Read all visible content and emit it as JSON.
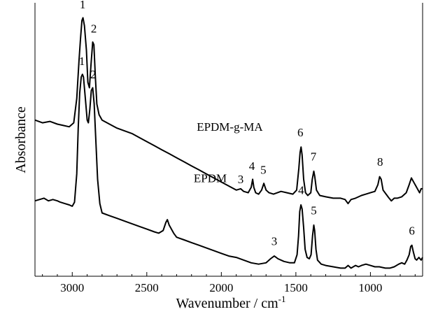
{
  "chart_data": {
    "type": "line",
    "title": "",
    "xlabel": "Wavenumber / cm",
    "xlabel_superscript": "-1",
    "ylabel": "Absorbance",
    "xlim": [
      3250,
      650
    ],
    "x_reversed": true,
    "ylim": [
      0,
      1
    ],
    "y_ticks_labeled": false,
    "grid": false,
    "x_ticks": [
      3000,
      2500,
      2000,
      1500,
      1000
    ],
    "x_tick_labels": [
      "3000",
      "2500",
      "2000",
      "1500",
      "1000"
    ],
    "line_color": "#000000",
    "series": [
      {
        "name": "EPDM-g-MA",
        "label_anchor": [
          2165,
          0.54
        ],
        "points": [
          [
            3250,
            0.58
          ],
          [
            3200,
            0.57
          ],
          [
            3150,
            0.575
          ],
          [
            3100,
            0.565
          ],
          [
            3060,
            0.56
          ],
          [
            3020,
            0.555
          ],
          [
            2990,
            0.57
          ],
          [
            2970,
            0.66
          ],
          [
            2955,
            0.8
          ],
          [
            2945,
            0.88
          ],
          [
            2935,
            0.95
          ],
          [
            2928,
            0.96
          ],
          [
            2918,
            0.93
          ],
          [
            2905,
            0.84
          ],
          [
            2895,
            0.72
          ],
          [
            2885,
            0.7
          ],
          [
            2875,
            0.78
          ],
          [
            2863,
            0.87
          ],
          [
            2855,
            0.86
          ],
          [
            2845,
            0.74
          ],
          [
            2835,
            0.64
          ],
          [
            2820,
            0.6
          ],
          [
            2800,
            0.58
          ],
          [
            2750,
            0.565
          ],
          [
            2700,
            0.55
          ],
          [
            2650,
            0.54
          ],
          [
            2600,
            0.53
          ],
          [
            2550,
            0.515
          ],
          [
            2500,
            0.5
          ],
          [
            2450,
            0.485
          ],
          [
            2400,
            0.47
          ],
          [
            2350,
            0.455
          ],
          [
            2300,
            0.44
          ],
          [
            2250,
            0.425
          ],
          [
            2200,
            0.41
          ],
          [
            2150,
            0.395
          ],
          [
            2100,
            0.38
          ],
          [
            2050,
            0.365
          ],
          [
            2000,
            0.35
          ],
          [
            1950,
            0.335
          ],
          [
            1900,
            0.32
          ],
          [
            1870,
            0.325
          ],
          [
            1850,
            0.315
          ],
          [
            1820,
            0.31
          ],
          [
            1800,
            0.33
          ],
          [
            1790,
            0.36
          ],
          [
            1782,
            0.33
          ],
          [
            1770,
            0.31
          ],
          [
            1750,
            0.305
          ],
          [
            1730,
            0.32
          ],
          [
            1715,
            0.345
          ],
          [
            1700,
            0.32
          ],
          [
            1680,
            0.31
          ],
          [
            1650,
            0.305
          ],
          [
            1600,
            0.315
          ],
          [
            1560,
            0.31
          ],
          [
            1520,
            0.305
          ],
          [
            1495,
            0.32
          ],
          [
            1480,
            0.4
          ],
          [
            1472,
            0.46
          ],
          [
            1465,
            0.48
          ],
          [
            1458,
            0.45
          ],
          [
            1448,
            0.36
          ],
          [
            1435,
            0.31
          ],
          [
            1420,
            0.3
          ],
          [
            1400,
            0.31
          ],
          [
            1390,
            0.36
          ],
          [
            1380,
            0.39
          ],
          [
            1373,
            0.37
          ],
          [
            1362,
            0.32
          ],
          [
            1340,
            0.3
          ],
          [
            1300,
            0.295
          ],
          [
            1250,
            0.29
          ],
          [
            1200,
            0.29
          ],
          [
            1170,
            0.285
          ],
          [
            1150,
            0.27
          ],
          [
            1130,
            0.285
          ],
          [
            1100,
            0.29
          ],
          [
            1060,
            0.3
          ],
          [
            1030,
            0.305
          ],
          [
            1000,
            0.31
          ],
          [
            970,
            0.315
          ],
          [
            950,
            0.34
          ],
          [
            938,
            0.37
          ],
          [
            928,
            0.36
          ],
          [
            915,
            0.32
          ],
          [
            895,
            0.305
          ],
          [
            875,
            0.29
          ],
          [
            860,
            0.28
          ],
          [
            840,
            0.29
          ],
          [
            820,
            0.29
          ],
          [
            790,
            0.295
          ],
          [
            760,
            0.31
          ],
          [
            740,
            0.34
          ],
          [
            725,
            0.365
          ],
          [
            710,
            0.35
          ],
          [
            695,
            0.335
          ],
          [
            680,
            0.32
          ],
          [
            670,
            0.31
          ],
          [
            660,
            0.325
          ],
          [
            650,
            0.325
          ]
        ]
      },
      {
        "name": "EPDM",
        "label_anchor": [
          2185,
          0.35
        ],
        "points": [
          [
            3250,
            0.28
          ],
          [
            3220,
            0.285
          ],
          [
            3190,
            0.29
          ],
          [
            3160,
            0.28
          ],
          [
            3130,
            0.285
          ],
          [
            3100,
            0.28
          ],
          [
            3080,
            0.275
          ],
          [
            3050,
            0.27
          ],
          [
            3020,
            0.265
          ],
          [
            3000,
            0.26
          ],
          [
            2985,
            0.275
          ],
          [
            2970,
            0.38
          ],
          [
            2960,
            0.55
          ],
          [
            2950,
            0.68
          ],
          [
            2940,
            0.74
          ],
          [
            2932,
            0.75
          ],
          [
            2925,
            0.74
          ],
          [
            2912,
            0.66
          ],
          [
            2900,
            0.58
          ],
          [
            2892,
            0.57
          ],
          [
            2882,
            0.62
          ],
          [
            2872,
            0.69
          ],
          [
            2863,
            0.7
          ],
          [
            2853,
            0.64
          ],
          [
            2843,
            0.52
          ],
          [
            2830,
            0.36
          ],
          [
            2815,
            0.27
          ],
          [
            2800,
            0.235
          ],
          [
            2750,
            0.225
          ],
          [
            2700,
            0.215
          ],
          [
            2650,
            0.205
          ],
          [
            2600,
            0.195
          ],
          [
            2550,
            0.185
          ],
          [
            2500,
            0.175
          ],
          [
            2450,
            0.165
          ],
          [
            2420,
            0.16
          ],
          [
            2390,
            0.17
          ],
          [
            2372,
            0.2
          ],
          [
            2362,
            0.21
          ],
          [
            2350,
            0.19
          ],
          [
            2335,
            0.175
          ],
          [
            2320,
            0.16
          ],
          [
            2300,
            0.145
          ],
          [
            2250,
            0.135
          ],
          [
            2200,
            0.125
          ],
          [
            2150,
            0.115
          ],
          [
            2100,
            0.105
          ],
          [
            2050,
            0.095
          ],
          [
            2000,
            0.085
          ],
          [
            1950,
            0.075
          ],
          [
            1900,
            0.07
          ],
          [
            1850,
            0.06
          ],
          [
            1800,
            0.05
          ],
          [
            1750,
            0.045
          ],
          [
            1700,
            0.05
          ],
          [
            1670,
            0.065
          ],
          [
            1645,
            0.075
          ],
          [
            1620,
            0.065
          ],
          [
            1580,
            0.055
          ],
          [
            1540,
            0.05
          ],
          [
            1510,
            0.05
          ],
          [
            1492,
            0.08
          ],
          [
            1482,
            0.15
          ],
          [
            1474,
            0.24
          ],
          [
            1466,
            0.265
          ],
          [
            1458,
            0.25
          ],
          [
            1448,
            0.18
          ],
          [
            1438,
            0.1
          ],
          [
            1425,
            0.07
          ],
          [
            1410,
            0.065
          ],
          [
            1398,
            0.08
          ],
          [
            1388,
            0.15
          ],
          [
            1380,
            0.19
          ],
          [
            1374,
            0.17
          ],
          [
            1365,
            0.1
          ],
          [
            1355,
            0.06
          ],
          [
            1330,
            0.045
          ],
          [
            1300,
            0.04
          ],
          [
            1250,
            0.035
          ],
          [
            1200,
            0.03
          ],
          [
            1170,
            0.03
          ],
          [
            1150,
            0.04
          ],
          [
            1130,
            0.03
          ],
          [
            1100,
            0.04
          ],
          [
            1080,
            0.035
          ],
          [
            1060,
            0.04
          ],
          [
            1030,
            0.045
          ],
          [
            1000,
            0.04
          ],
          [
            970,
            0.035
          ],
          [
            940,
            0.035
          ],
          [
            900,
            0.03
          ],
          [
            870,
            0.03
          ],
          [
            840,
            0.035
          ],
          [
            810,
            0.045
          ],
          [
            790,
            0.05
          ],
          [
            770,
            0.045
          ],
          [
            755,
            0.06
          ],
          [
            740,
            0.08
          ],
          [
            730,
            0.11
          ],
          [
            722,
            0.115
          ],
          [
            712,
            0.09
          ],
          [
            700,
            0.065
          ],
          [
            690,
            0.06
          ],
          [
            675,
            0.07
          ],
          [
            660,
            0.06
          ],
          [
            650,
            0.07
          ]
        ]
      }
    ],
    "peak_labels": [
      {
        "text": "1",
        "x": 2930,
        "y": 0.995
      },
      {
        "text": "2",
        "x": 2855,
        "y": 0.905
      },
      {
        "text": "3",
        "x": 1870,
        "y": 0.345
      },
      {
        "text": "4",
        "x": 1795,
        "y": 0.395
      },
      {
        "text": "5",
        "x": 1718,
        "y": 0.38
      },
      {
        "text": "6",
        "x": 1470,
        "y": 0.52
      },
      {
        "text": "7",
        "x": 1382,
        "y": 0.43
      },
      {
        "text": "8",
        "x": 935,
        "y": 0.41
      },
      {
        "text": "1",
        "x": 2935,
        "y": 0.785
      },
      {
        "text": "2",
        "x": 2860,
        "y": 0.735
      },
      {
        "text": "3",
        "x": 1645,
        "y": 0.115
      },
      {
        "text": "4",
        "x": 1465,
        "y": 0.305
      },
      {
        "text": "5",
        "x": 1380,
        "y": 0.23
      },
      {
        "text": "6",
        "x": 722,
        "y": 0.155
      }
    ]
  }
}
